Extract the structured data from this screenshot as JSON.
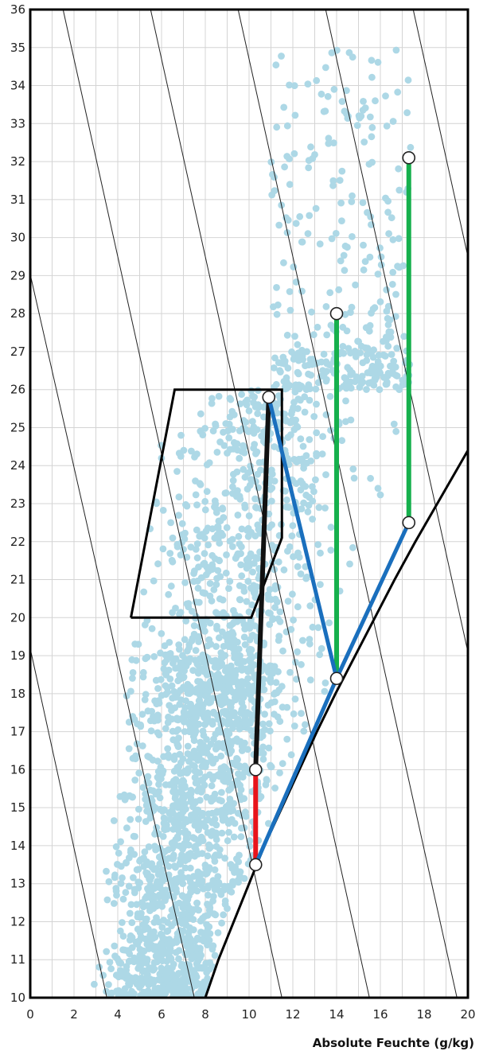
{
  "chart_data": {
    "type": "scatter",
    "title": "",
    "xlabel": "Absolute Feuchte (g/kg)",
    "ylabel": "",
    "xlim": [
      0,
      20
    ],
    "ylim": [
      10,
      36
    ],
    "x_ticks": [
      "0",
      "2",
      "4",
      "6",
      "8",
      "10",
      "12",
      "14",
      "16",
      "18",
      "20"
    ],
    "y_ticks": [
      "10",
      "11",
      "12",
      "13",
      "14",
      "15",
      "16",
      "17",
      "18",
      "19",
      "20",
      "21",
      "22",
      "23",
      "24",
      "25",
      "26",
      "27",
      "28",
      "29",
      "30",
      "31",
      "32",
      "33",
      "34",
      "35",
      "36"
    ],
    "grid": true,
    "legend": "none",
    "colors": {
      "scatter": "#add8e6",
      "saturation_curve": "#000000",
      "comfort_zone": "#000000",
      "process_black": "#111111",
      "process_red": "#e8141b",
      "process_blue": "#1a6fbd",
      "process_green": "#16b04d",
      "grid": "#d4d4d4"
    },
    "scatter_cloud": {
      "description_free": true,
      "x_range": [
        2.8,
        17.4
      ],
      "y_range": [
        10,
        35
      ],
      "count_approx": 2600
    },
    "saturation_curve": [
      [
        8.0,
        10.0
      ],
      [
        8.6,
        11.0
      ],
      [
        9.3,
        12.0
      ],
      [
        10.0,
        13.0
      ],
      [
        10.7,
        14.0
      ],
      [
        11.5,
        15.0
      ],
      [
        12.3,
        16.0
      ],
      [
        13.1,
        17.0
      ],
      [
        13.95,
        18.0
      ],
      [
        14.85,
        19.0
      ],
      [
        15.75,
        20.0
      ],
      [
        16.65,
        21.0
      ],
      [
        17.6,
        22.0
      ],
      [
        18.6,
        23.0
      ],
      [
        19.6,
        24.0
      ],
      [
        20.0,
        24.4
      ]
    ],
    "diagonal_lines": [
      [
        [
          -0.5,
          20.5
        ],
        [
          3.5,
          10.0
        ]
      ],
      [
        [
          -0.5,
          30.3
        ],
        [
          7.5,
          10.0
        ]
      ],
      [
        [
          1.5,
          36.0
        ],
        [
          11.5,
          10.0
        ]
      ],
      [
        [
          5.5,
          36.0
        ],
        [
          15.5,
          10.0
        ]
      ],
      [
        [
          9.5,
          36.0
        ],
        [
          19.5,
          10.0
        ]
      ],
      [
        [
          13.5,
          36.0
        ],
        [
          23.5,
          10.0
        ]
      ],
      [
        [
          17.5,
          36.0
        ],
        [
          27.5,
          10.0
        ]
      ]
    ],
    "comfort_zone": [
      [
        4.6,
        20.0
      ],
      [
        6.6,
        26.0
      ],
      [
        11.5,
        26.0
      ],
      [
        11.5,
        22.1
      ],
      [
        10.1,
        20.0
      ],
      [
        4.6,
        20.0
      ]
    ],
    "process_lines": [
      {
        "color": "black",
        "points": [
          [
            10.3,
            16.0
          ],
          [
            10.9,
            25.8
          ]
        ]
      },
      {
        "color": "red",
        "points": [
          [
            10.3,
            16.0
          ],
          [
            10.3,
            13.5
          ]
        ]
      },
      {
        "color": "blue",
        "points": [
          [
            10.3,
            13.5
          ],
          [
            14.0,
            18.4
          ]
        ]
      },
      {
        "color": "blue",
        "points": [
          [
            10.9,
            25.8
          ],
          [
            14.0,
            18.4
          ]
        ]
      },
      {
        "color": "blue",
        "points": [
          [
            14.0,
            18.4
          ],
          [
            17.3,
            22.5
          ]
        ]
      },
      {
        "color": "green",
        "points": [
          [
            14.0,
            18.4
          ],
          [
            14.0,
            28.0
          ]
        ]
      },
      {
        "color": "green",
        "points": [
          [
            17.3,
            22.5
          ],
          [
            17.3,
            32.1
          ]
        ]
      }
    ],
    "state_points": [
      [
        10.9,
        25.8
      ],
      [
        10.3,
        16.0
      ],
      [
        10.3,
        13.5
      ],
      [
        14.0,
        18.4
      ],
      [
        14.0,
        28.0
      ],
      [
        17.3,
        22.5
      ],
      [
        17.3,
        32.1
      ]
    ]
  }
}
